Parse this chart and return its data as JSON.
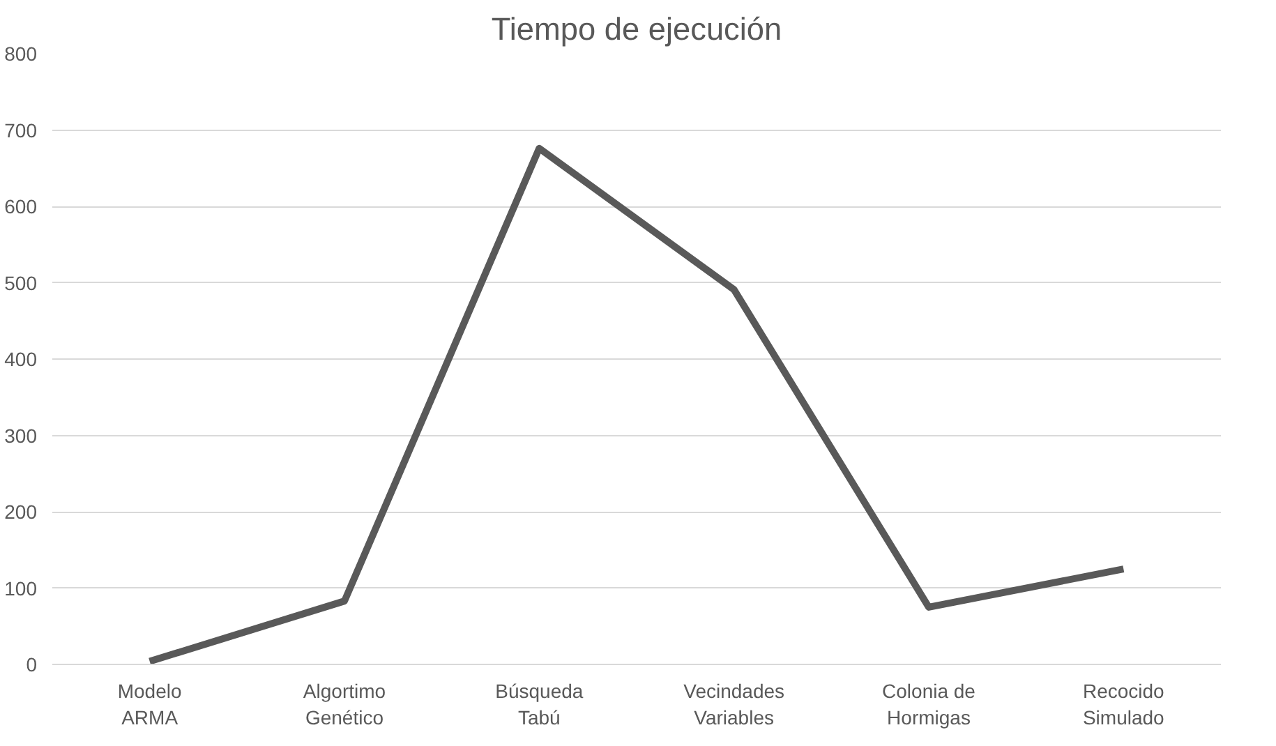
{
  "chart_data": {
    "type": "line",
    "title": "Tiempo de ejecución",
    "categories": [
      "Modelo\nARMA",
      "Algortimo\nGenético",
      "Búsqueda\nTabú",
      "Vecindades\nVariables",
      "Colonia de\nHormigas",
      "Recocido\nSimulado"
    ],
    "series": [
      {
        "color": "#595959",
        "values": [
          4,
          83,
          676,
          491,
          75,
          125
        ]
      }
    ],
    "ylim": [
      0,
      800
    ],
    "yticks": [
      0,
      100,
      200,
      300,
      400,
      500,
      600,
      700,
      800
    ],
    "grid": "y",
    "marker": "none",
    "line_style": "solid"
  }
}
